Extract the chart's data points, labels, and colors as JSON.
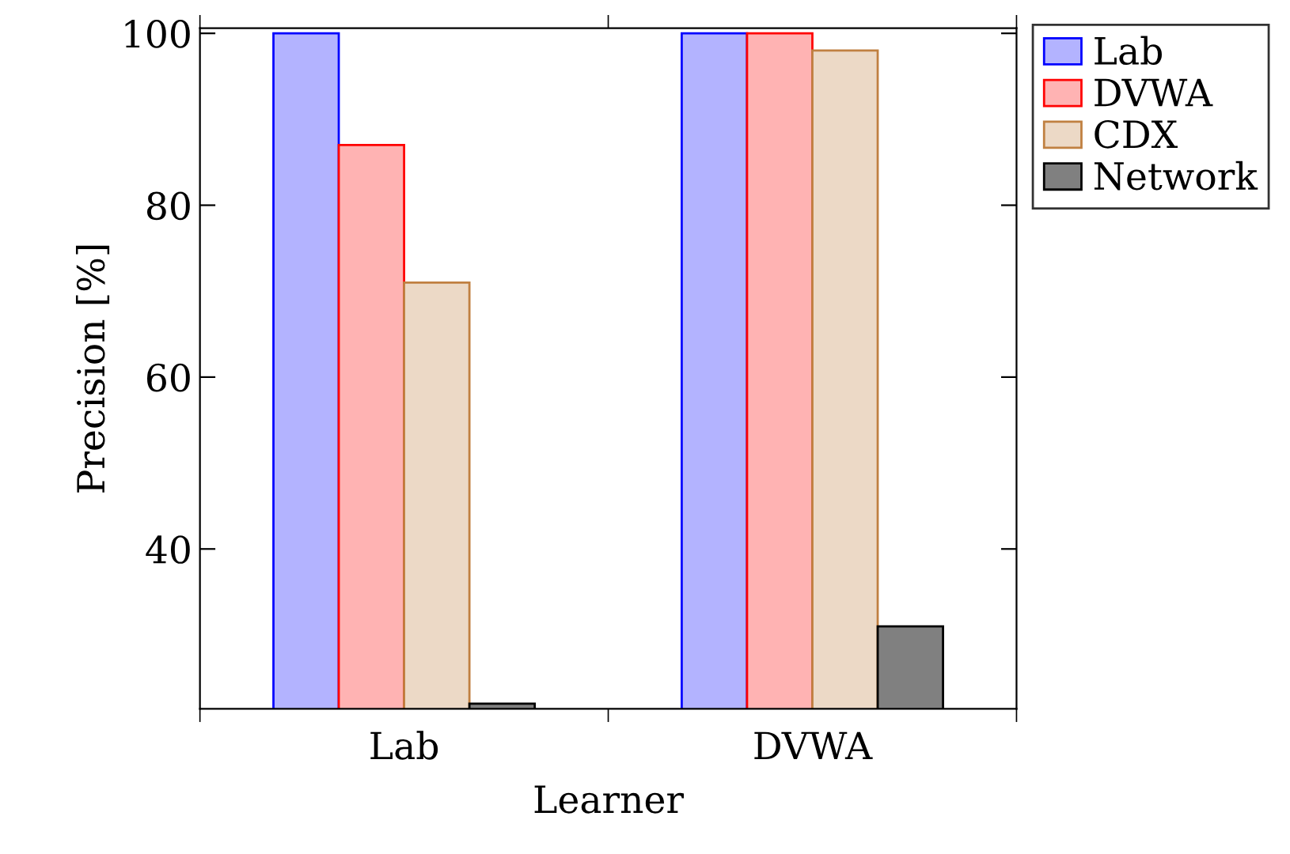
{
  "chart_data": {
    "type": "bar",
    "xlabel": "Learner",
    "ylabel": "Precision [%]",
    "categories": [
      "Lab",
      "DVWA"
    ],
    "series": [
      {
        "name": "Lab",
        "color": "#b3b3ff",
        "values": [
          100,
          100
        ]
      },
      {
        "name": "DVWA",
        "color": "#ffb3b3",
        "values": [
          87,
          100
        ]
      },
      {
        "name": "CDX",
        "color": "#ecd9c6",
        "values": [
          71,
          98
        ]
      },
      {
        "name": "Network",
        "color": "#808080",
        "values": [
          22,
          31
        ]
      }
    ],
    "ylim": [
      21.4,
      100.6
    ],
    "yticks": [
      40,
      60,
      80,
      100
    ],
    "grid": false,
    "legend": "top right"
  }
}
